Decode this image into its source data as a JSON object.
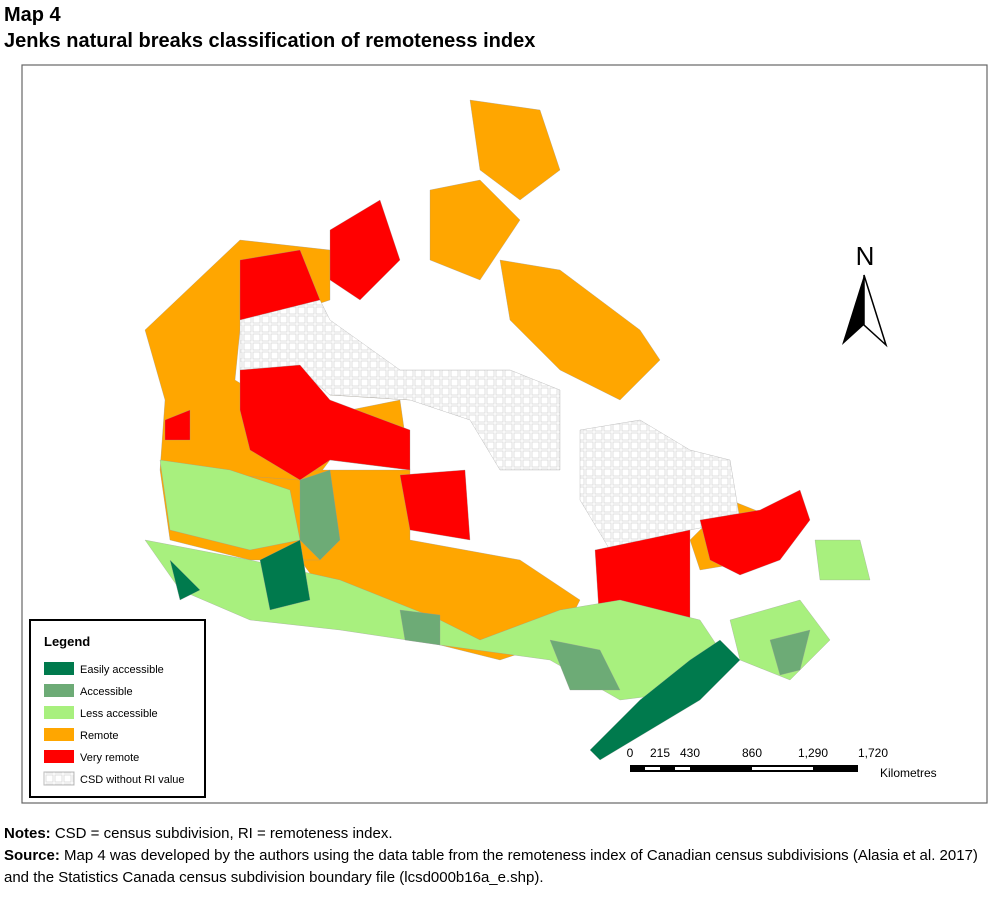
{
  "header": {
    "title": "Map 4",
    "subtitle": "Jenks natural breaks classification of remoteness index"
  },
  "legend": {
    "title": "Legend",
    "items": [
      {
        "label": "Easily accessible",
        "color": "#007a4d"
      },
      {
        "label": "Accessible",
        "color": "#6dab76"
      },
      {
        "label": "Less accessible",
        "color": "#a8f07e"
      },
      {
        "label": "Remote",
        "color": "#ffa600"
      },
      {
        "label": "Very remote",
        "color": "#ff0000"
      },
      {
        "label": "CSD without RI value",
        "color": "#f4f4f4"
      }
    ]
  },
  "north_arrow": {
    "label": "N"
  },
  "scale_bar": {
    "labels": [
      "0",
      "215",
      "430",
      "860",
      "1,290",
      "1,720"
    ],
    "unit": "Kilometres"
  },
  "notes": {
    "label": "Notes:",
    "text": " CSD = census subdivision, RI = remoteness index."
  },
  "source": {
    "label": "Source:",
    "text": " Map 4 was developed by the authors using the data table from the remoteness index of Canadian census subdivisions (Alasia et al. 2017) and the Statistics Canada census subdivision boundary file (lcsd000b16a_e.shp)."
  }
}
